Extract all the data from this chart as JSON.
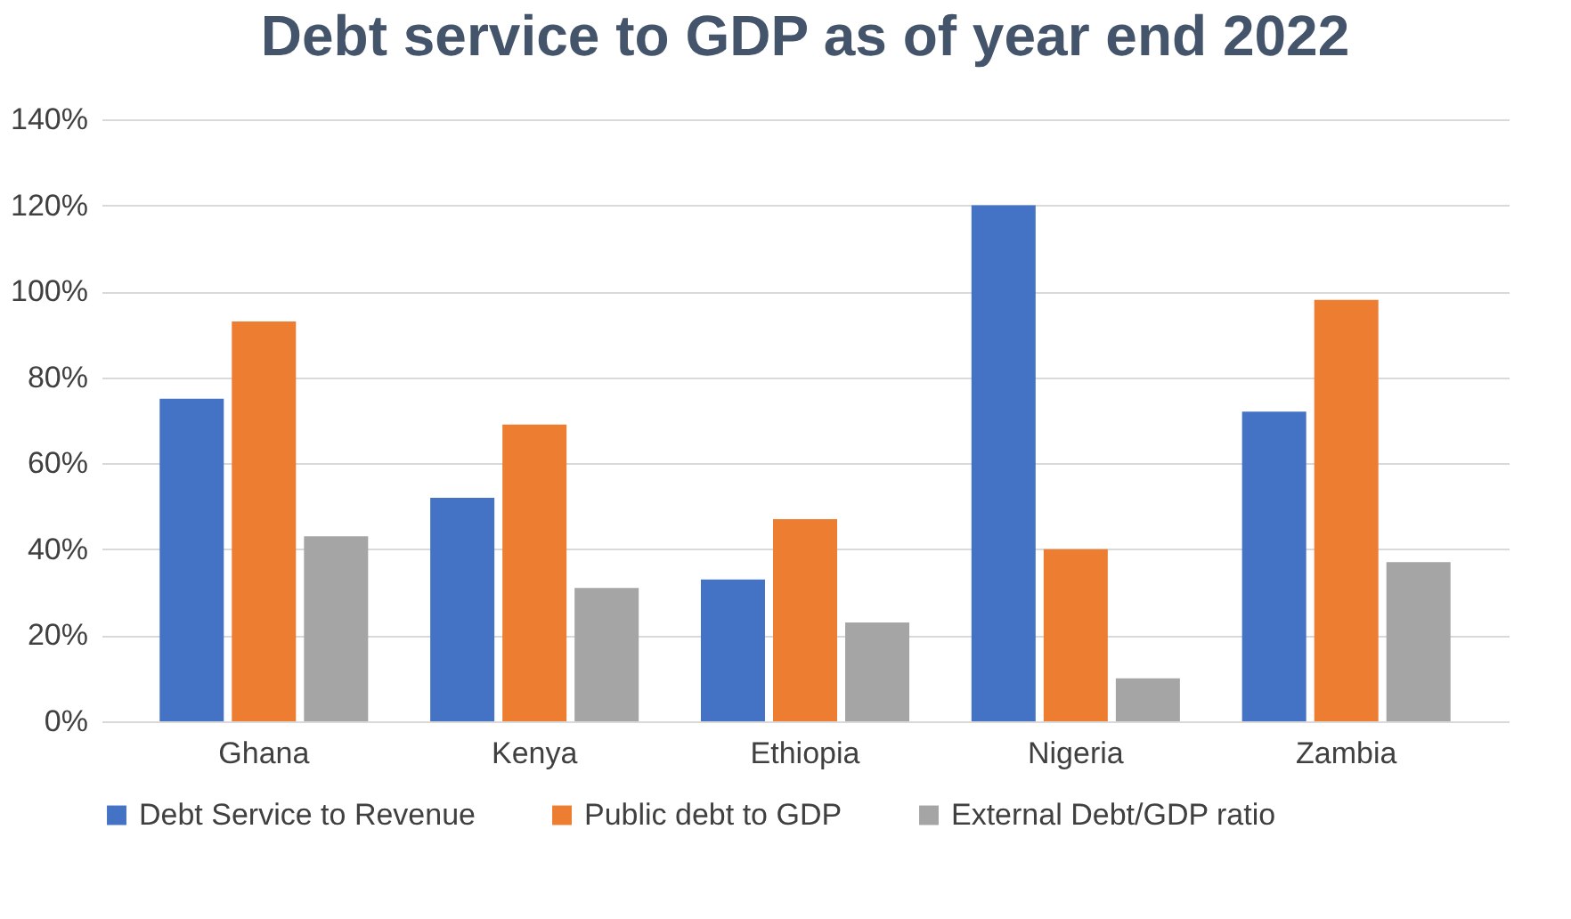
{
  "chart_data": {
    "type": "bar",
    "title": "Debt service to GDP as of year end 2022",
    "categories": [
      "Ghana",
      "Kenya",
      "Ethiopia",
      "Nigeria",
      "Zambia"
    ],
    "series": [
      {
        "name": "Debt Service to Revenue",
        "color": "#4472c4",
        "values": [
          75,
          52,
          33,
          120,
          72
        ]
      },
      {
        "name": "Public debt to GDP",
        "color": "#ed7d31",
        "values": [
          93,
          69,
          47,
          40,
          98
        ]
      },
      {
        "name": "External Debt/GDP ratio",
        "color": "#a5a5a5",
        "values": [
          43,
          31,
          23,
          10,
          37
        ]
      }
    ],
    "ylim": [
      0,
      140
    ],
    "yticks": [
      {
        "value": 0,
        "label": "0%"
      },
      {
        "value": 20,
        "label": "20%"
      },
      {
        "value": 40,
        "label": "40%"
      },
      {
        "value": 60,
        "label": "60%"
      },
      {
        "value": 80,
        "label": "80%"
      },
      {
        "value": 100,
        "label": "100%"
      },
      {
        "value": 120,
        "label": "120%"
      },
      {
        "value": 140,
        "label": "140%"
      }
    ],
    "grid": "y",
    "legend": "bottom"
  }
}
